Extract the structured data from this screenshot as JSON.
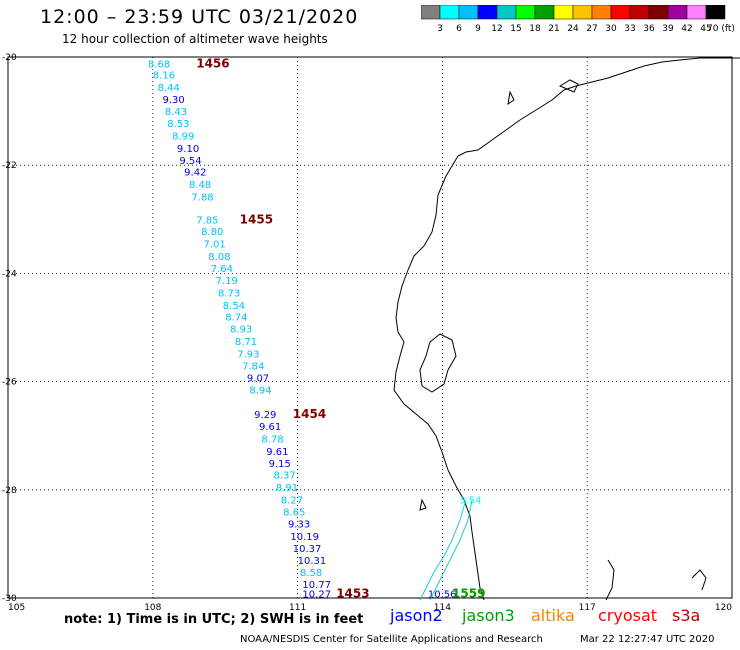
{
  "header": {
    "title": "12:00 – 23:59 UTC 03/21/2020",
    "subtitle": "12 hour collection of altimeter wave heights"
  },
  "colorbar": {
    "labels": [
      "3",
      "6",
      "9",
      "12",
      "15",
      "18",
      "21",
      "24",
      "27",
      "30",
      "33",
      "36",
      "39",
      "42",
      "45",
      "70 (ft)"
    ],
    "colors": [
      "#808080",
      "#00ffff",
      "#00c0ff",
      "#0000ff",
      "#00c8c8",
      "#00ff00",
      "#00a000",
      "#ffff00",
      "#ffc000",
      "#ff8000",
      "#ff0000",
      "#c00000",
      "#800000",
      "#a000a0",
      "#ff80ff",
      "#000000"
    ]
  },
  "axes": {
    "lat_labels": [
      "-20",
      "-22",
      "-24",
      "-26",
      "-28",
      "-30"
    ],
    "lat_values": [
      -20,
      -22,
      -24,
      -26,
      -28,
      -30
    ],
    "lon_labels": [
      "105",
      "108",
      "111",
      "114",
      "117",
      "120"
    ],
    "lon_values": [
      105,
      108,
      111,
      114,
      117,
      120
    ]
  },
  "chart_data": {
    "type": "scatter",
    "title": "12:00 – 23:59 UTC 03/21/2020",
    "xlim": [
      105,
      120
    ],
    "ylim": [
      -30,
      -20
    ],
    "track_labels": [
      {
        "text": "1456",
        "lon": 108.9,
        "lat": -20.12
      },
      {
        "text": "1455",
        "lon": 109.8,
        "lat": -23.0
      },
      {
        "text": "1454",
        "lon": 110.9,
        "lat": -26.6
      },
      {
        "text": "1453",
        "lon": 111.8,
        "lat": -29.92
      },
      {
        "text": "1559",
        "lon": 114.2,
        "lat": -29.92
      }
    ],
    "points": [
      {
        "v": "8.68",
        "lon": 107.9,
        "lat": -20.12,
        "c": "#00c0ff"
      },
      {
        "v": "8.16",
        "lon": 108.0,
        "lat": -20.32,
        "c": "#00c0ff"
      },
      {
        "v": "8.44",
        "lon": 108.1,
        "lat": -20.55,
        "c": "#00c0ff"
      },
      {
        "v": "9.30",
        "lon": 108.2,
        "lat": -20.78,
        "c": "#0000ff"
      },
      {
        "v": "8.43",
        "lon": 108.25,
        "lat": -21.0,
        "c": "#00c0ff"
      },
      {
        "v": "8.53",
        "lon": 108.3,
        "lat": -21.22,
        "c": "#00c0ff"
      },
      {
        "v": "8.99",
        "lon": 108.4,
        "lat": -21.45,
        "c": "#00c0ff"
      },
      {
        "v": "9.10",
        "lon": 108.5,
        "lat": -21.68,
        "c": "#0000ff"
      },
      {
        "v": "9.54",
        "lon": 108.55,
        "lat": -21.9,
        "c": "#0000ff"
      },
      {
        "v": "9.42",
        "lon": 108.65,
        "lat": -22.12,
        "c": "#0000ff"
      },
      {
        "v": "8.48",
        "lon": 108.75,
        "lat": -22.35,
        "c": "#00c0ff"
      },
      {
        "v": "7.88",
        "lon": 108.8,
        "lat": -22.58,
        "c": "#00c0ff"
      },
      {
        "v": "7.85",
        "lon": 108.9,
        "lat": -23.0,
        "c": "#00c0ff"
      },
      {
        "v": "8.80",
        "lon": 109.0,
        "lat": -23.22,
        "c": "#00c0ff"
      },
      {
        "v": "7.01",
        "lon": 109.05,
        "lat": -23.45,
        "c": "#00c0ff"
      },
      {
        "v": "8.08",
        "lon": 109.15,
        "lat": -23.68,
        "c": "#00c0ff"
      },
      {
        "v": "7.64",
        "lon": 109.2,
        "lat": -23.9,
        "c": "#00c0ff"
      },
      {
        "v": "7.19",
        "lon": 109.3,
        "lat": -24.12,
        "c": "#00c0ff"
      },
      {
        "v": "8.73",
        "lon": 109.35,
        "lat": -24.35,
        "c": "#00c0ff"
      },
      {
        "v": "8.54",
        "lon": 109.45,
        "lat": -24.58,
        "c": "#00c0ff"
      },
      {
        "v": "8.74",
        "lon": 109.5,
        "lat": -24.8,
        "c": "#00c0ff"
      },
      {
        "v": "8.93",
        "lon": 109.6,
        "lat": -25.02,
        "c": "#00c0ff"
      },
      {
        "v": "8.71",
        "lon": 109.7,
        "lat": -25.25,
        "c": "#00c0ff"
      },
      {
        "v": "7.93",
        "lon": 109.75,
        "lat": -25.48,
        "c": "#00c0ff"
      },
      {
        "v": "7.84",
        "lon": 109.85,
        "lat": -25.7,
        "c": "#00c0ff"
      },
      {
        "v": "9.07",
        "lon": 109.95,
        "lat": -25.92,
        "c": "#0000ff"
      },
      {
        "v": "8.94",
        "lon": 110.0,
        "lat": -26.15,
        "c": "#00c0ff"
      },
      {
        "v": "9.29",
        "lon": 110.1,
        "lat": -26.6,
        "c": "#0000ff"
      },
      {
        "v": "9.61",
        "lon": 110.2,
        "lat": -26.82,
        "c": "#0000ff"
      },
      {
        "v": "8.78",
        "lon": 110.25,
        "lat": -27.05,
        "c": "#00c0ff"
      },
      {
        "v": "9.61",
        "lon": 110.35,
        "lat": -27.28,
        "c": "#0000ff"
      },
      {
        "v": "9.15",
        "lon": 110.4,
        "lat": -27.5,
        "c": "#0000ff"
      },
      {
        "v": "8.37",
        "lon": 110.5,
        "lat": -27.72,
        "c": "#00c0ff"
      },
      {
        "v": "8.91",
        "lon": 110.55,
        "lat": -27.95,
        "c": "#00c0ff"
      },
      {
        "v": "8.27",
        "lon": 110.65,
        "lat": -28.18,
        "c": "#00c0ff"
      },
      {
        "v": "8.65",
        "lon": 110.7,
        "lat": -28.4,
        "c": "#00c0ff"
      },
      {
        "v": "9.33",
        "lon": 110.8,
        "lat": -28.62,
        "c": "#0000ff"
      },
      {
        "v": "10.19",
        "lon": 110.85,
        "lat": -28.85,
        "c": "#0000ff"
      },
      {
        "v": "10.37",
        "lon": 110.9,
        "lat": -29.08,
        "c": "#0000ff"
      },
      {
        "v": "10.31",
        "lon": 111.0,
        "lat": -29.3,
        "c": "#0000ff"
      },
      {
        "v": "8.58",
        "lon": 111.05,
        "lat": -29.52,
        "c": "#00c0ff"
      },
      {
        "v": "10.77",
        "lon": 111.1,
        "lat": -29.74,
        "c": "#0000ff"
      },
      {
        "v": "10.27",
        "lon": 111.1,
        "lat": -29.92,
        "c": "#0000ff"
      },
      {
        "v": "3.54",
        "lon": 114.35,
        "lat": -28.18,
        "c": "#00ffff"
      },
      {
        "v": "10.56",
        "lon": 113.7,
        "lat": -29.92,
        "c": "#0000ff"
      }
    ]
  },
  "footer": {
    "note": "note: 1) Time is in UTC; 2) SWH is in feet",
    "satellites": [
      {
        "name": "jason2",
        "color": "#0000ff"
      },
      {
        "name": "jason3",
        "color": "#00a000"
      },
      {
        "name": "altika",
        "color": "#ff8000"
      },
      {
        "name": "cryosat",
        "color": "#ff0000"
      },
      {
        "name": "s3a",
        "color": "#c00000"
      }
    ],
    "credit": "NOAA/NESDIS Center for Satellite Applications and Research",
    "timestamp": "Mar 22 12:27:47 UTC 2020"
  }
}
